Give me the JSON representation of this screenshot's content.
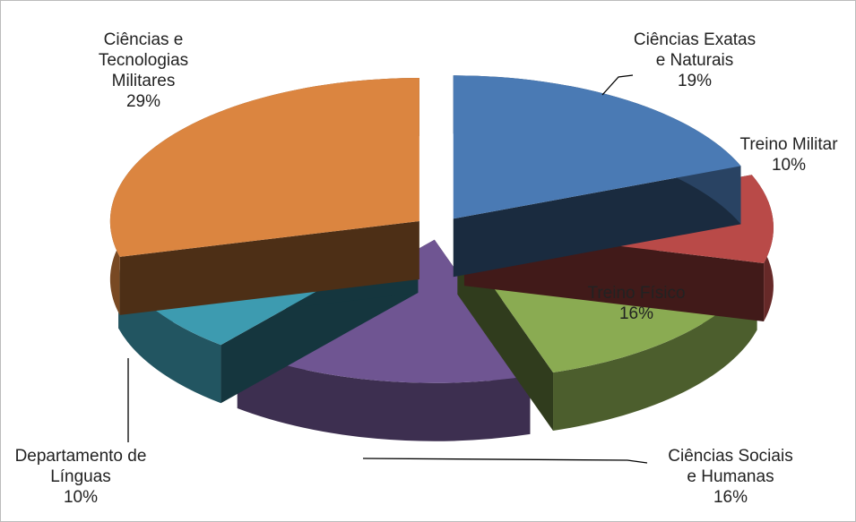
{
  "chart_data": {
    "type": "pie3d",
    "categories": [
      "Ciências Exatas e Naturais",
      "Treino Militar",
      "Treino Físico",
      "Ciências Sociais e Humanas",
      "Departamento de Línguas",
      "Ciências e Tecnologias Militares"
    ],
    "values": [
      19,
      10,
      16,
      16,
      10,
      29
    ],
    "value_labels": [
      "19%",
      "10%",
      "16%",
      "16%",
      "10%",
      "29%"
    ],
    "colors": [
      "#4a7ab4",
      "#b94a48",
      "#8aab52",
      "#6f5592",
      "#3d9bb0",
      "#db8540"
    ]
  }
}
